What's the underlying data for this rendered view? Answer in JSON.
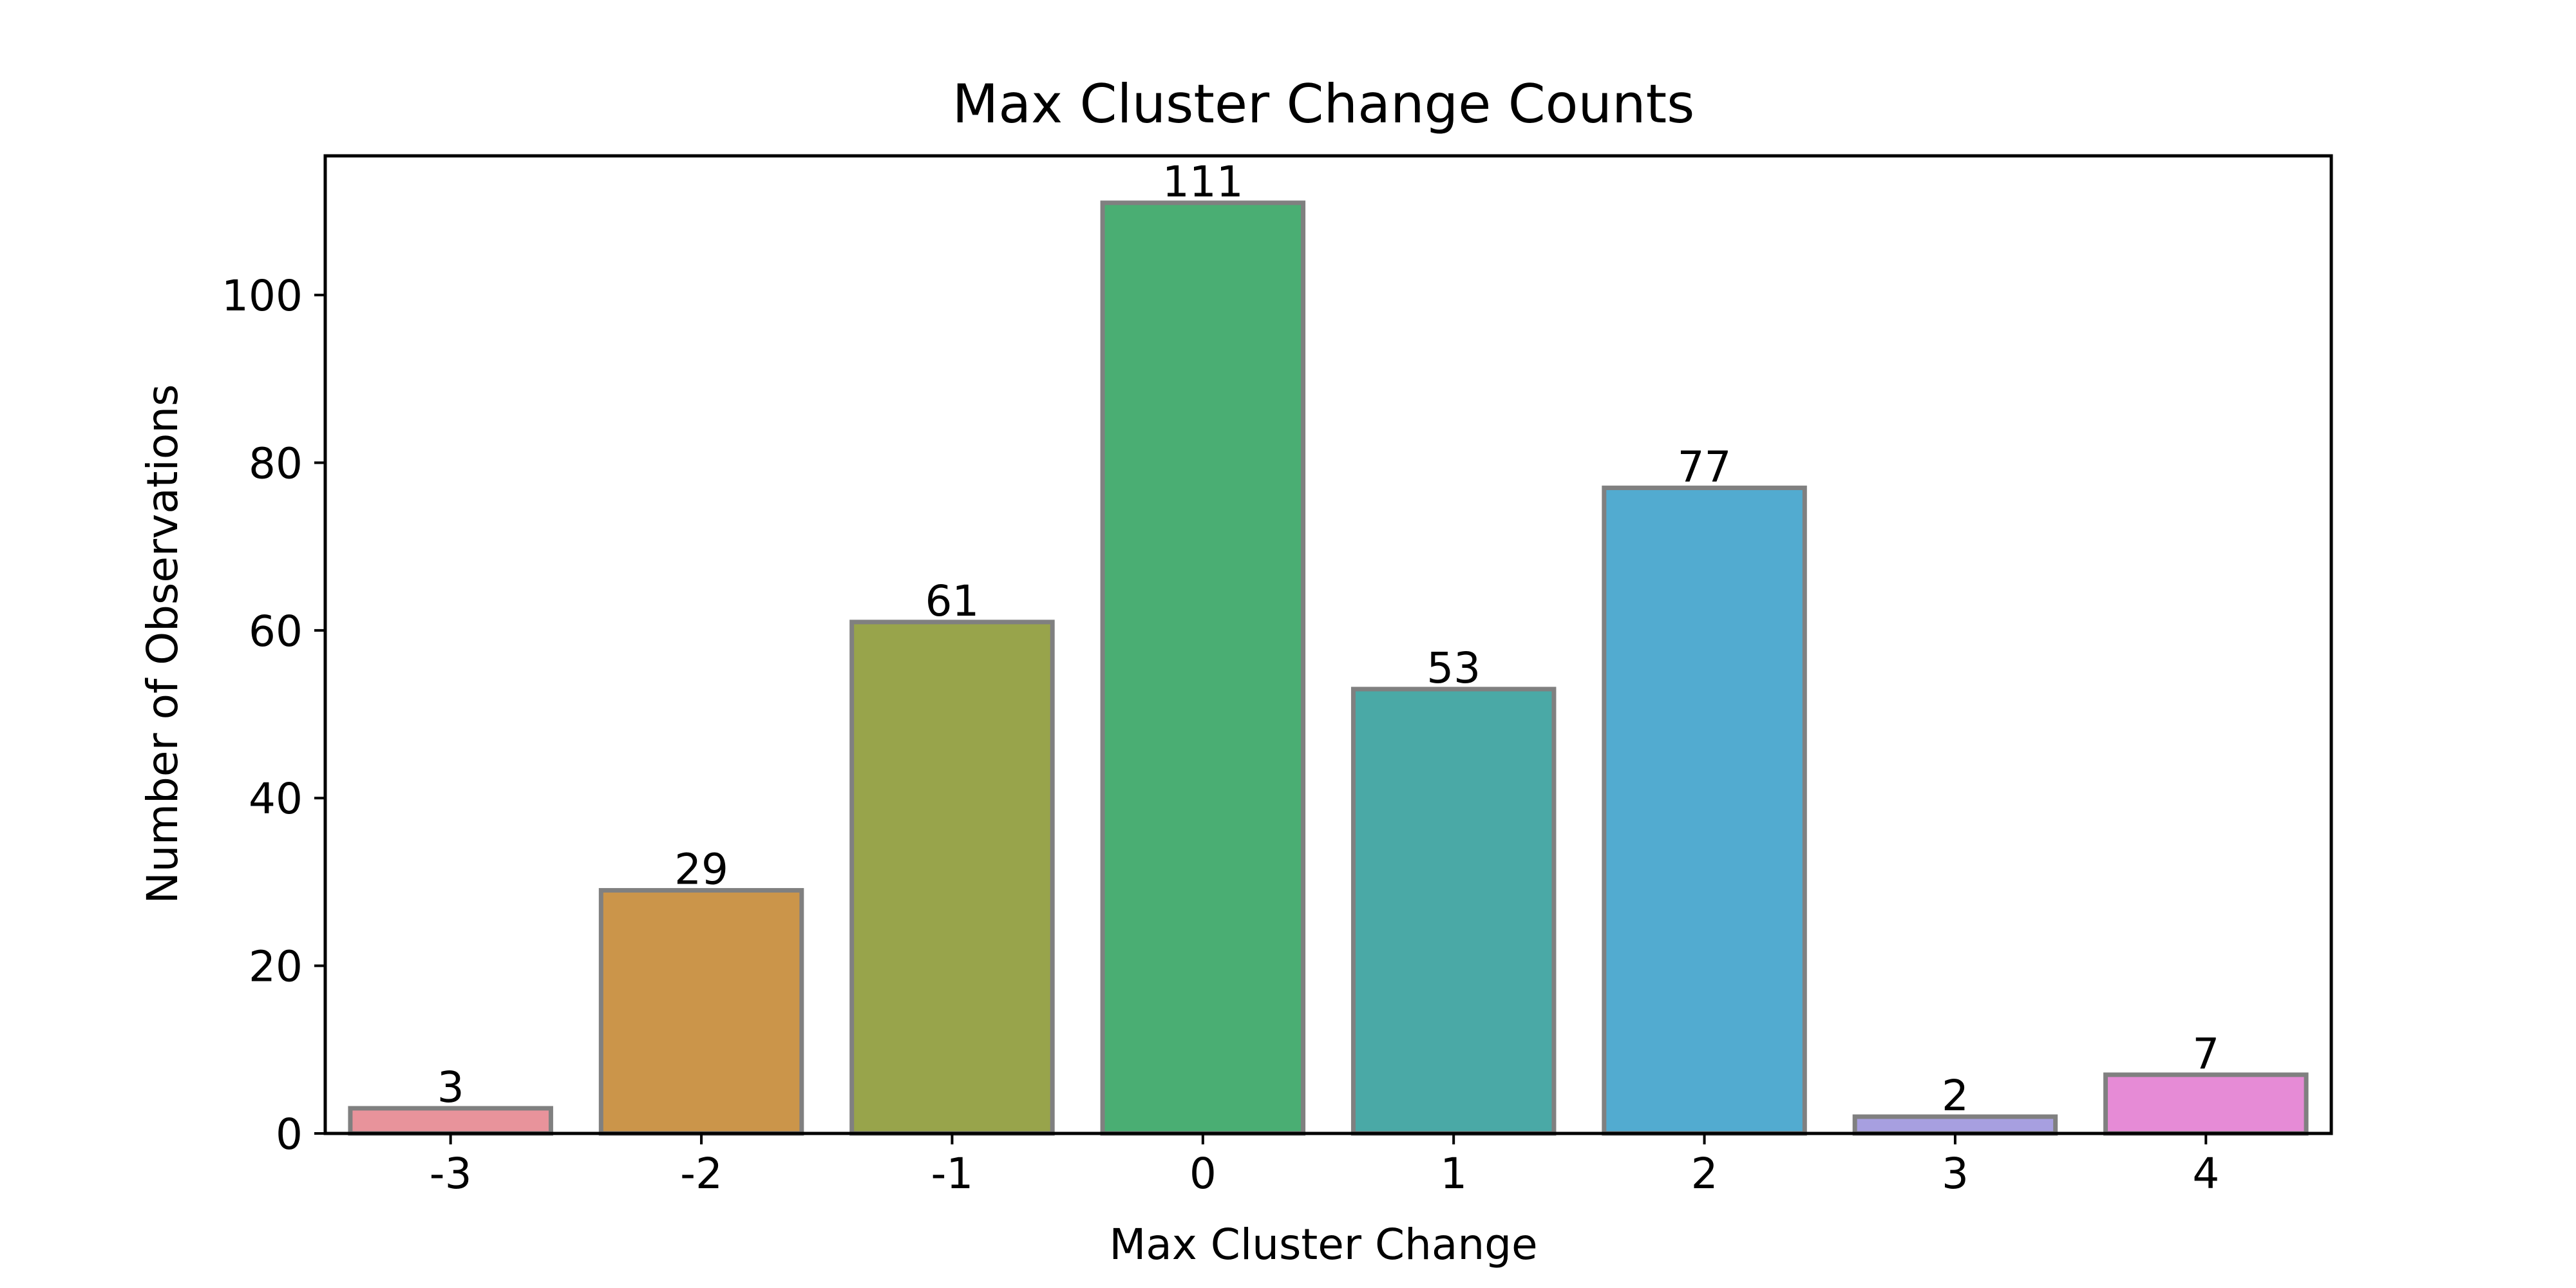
{
  "chart_data": {
    "type": "bar",
    "title": "Max Cluster Change Counts",
    "xlabel": "Max Cluster Change",
    "ylabel": "Number of Observations",
    "categories": [
      "-3",
      "-2",
      "-1",
      "0",
      "1",
      "2",
      "3",
      "4"
    ],
    "values": [
      3,
      29,
      61,
      111,
      53,
      77,
      2,
      7
    ],
    "data_labels": [
      "3",
      "29",
      "61",
      "111",
      "53",
      "77",
      "2",
      "7"
    ],
    "colors": [
      "#e8939b",
      "#cb954a",
      "#98a44b",
      "#4aae73",
      "#4aa9a6",
      "#52abd0",
      "#a79fe0",
      "#e68bd6"
    ],
    "bar_edge_color": "#808080",
    "ylim": [
      0,
      116.6
    ],
    "yticks": [
      0,
      20,
      40,
      60,
      80,
      100
    ],
    "ytick_labels": [
      "0",
      "20",
      "40",
      "60",
      "80",
      "100"
    ],
    "grid": false,
    "legend": "none"
  }
}
